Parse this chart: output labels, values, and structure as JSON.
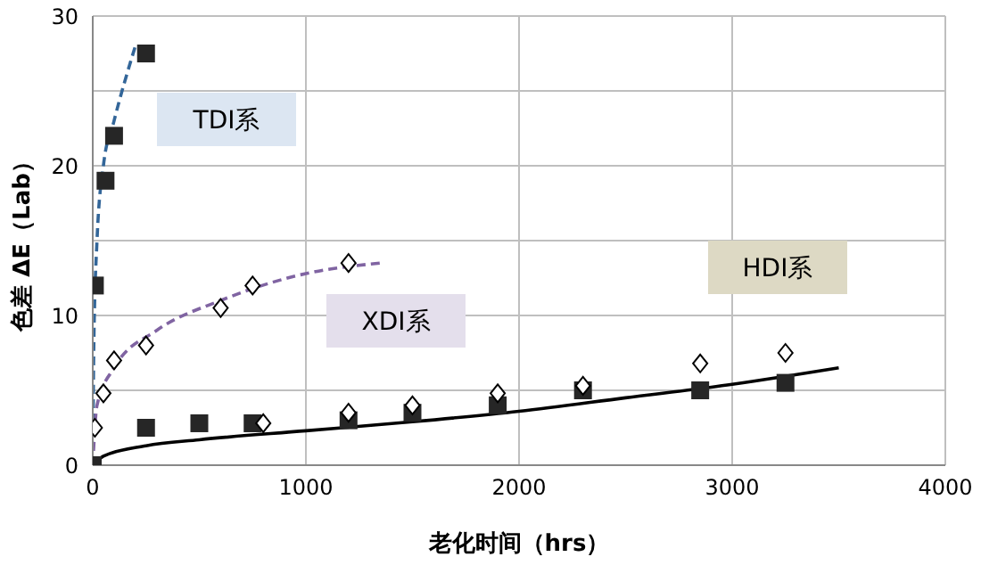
{
  "chart_data": {
    "type": "scatter",
    "xlabel": "老化时间（hrs）",
    "ylabel": "色差 ΔE（Lab）",
    "xlim": [
      0,
      4000
    ],
    "xticks": [
      0,
      1000,
      2000,
      3000,
      4000
    ],
    "ylim": [
      0,
      30
    ],
    "yticks": [
      0,
      {
        "value": 5,
        "label": null
      },
      10,
      {
        "value": 15,
        "label": null
      },
      20,
      {
        "value": 25,
        "label": null
      },
      30
    ],
    "grid": true,
    "series": [
      {
        "marker": "square",
        "color": "#262626",
        "x": [
          0,
          10,
          60,
          100,
          250
        ],
        "values": [
          0,
          12,
          19,
          22,
          27.5
        ]
      },
      {
        "marker": "diamond",
        "color": "#000000",
        "x": [
          10,
          50,
          100,
          250,
          600,
          750,
          1200
        ],
        "values": [
          2.5,
          4.8,
          7,
          8,
          10.5,
          12,
          13.5
        ]
      },
      {
        "marker": "square",
        "color": "#262626",
        "x": [
          250,
          500,
          750,
          1200,
          1500,
          1900,
          2300,
          2850,
          3250
        ],
        "values": [
          2.5,
          2.8,
          2.8,
          3,
          3.5,
          4,
          5,
          5,
          5.5
        ]
      },
      {
        "marker": "diamond",
        "color": "#000000",
        "x": [
          800,
          1200,
          1500,
          1900,
          2300,
          2850,
          3250
        ],
        "values": [
          2.8,
          3.5,
          4,
          4.8,
          5.3,
          6.8,
          7.5
        ]
      },
      {
        "type": "line",
        "marker": "none",
        "line_style": "dashed",
        "color": "#336699",
        "x": [
          0,
          5,
          20,
          50,
          100,
          200
        ],
        "values": [
          0,
          8,
          15,
          20,
          23,
          28
        ]
      },
      {
        "type": "line",
        "marker": "none",
        "line_style": "dashed",
        "color": "#8064a2",
        "x": [
          0,
          20,
          100,
          300,
          600,
          1000,
          1350
        ],
        "values": [
          0,
          4,
          6.5,
          9,
          11,
          12.8,
          13.5
        ]
      },
      {
        "type": "line",
        "marker": "none",
        "line_style": "solid",
        "color": "#000000",
        "x": [
          0,
          50,
          250,
          500,
          1000,
          1500,
          2000,
          2500,
          3000,
          3500
        ],
        "values": [
          0,
          0.6,
          1.3,
          1.7,
          2.3,
          2.9,
          3.6,
          4.5,
          5.4,
          6.5
        ]
      }
    ],
    "annotations": [
      "TDI系",
      "XDI系",
      "HDI系"
    ]
  }
}
